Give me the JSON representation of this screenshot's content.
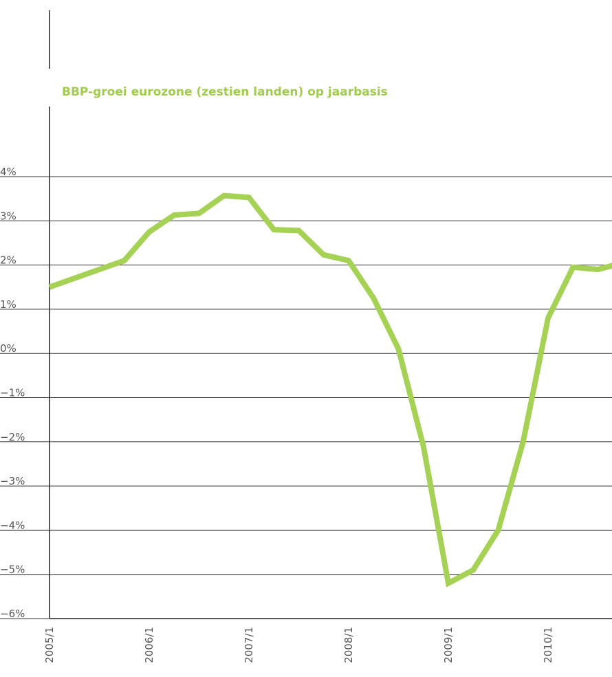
{
  "chart_data": {
    "type": "line",
    "title": "BBP-groei eurozone (zestien landen) op jaarbasis",
    "categories": [
      "2005/1",
      null,
      null,
      null,
      "2006/1",
      null,
      null,
      null,
      "2007/1",
      null,
      null,
      null,
      "2008/1",
      null,
      null,
      null,
      "2009/1",
      null,
      null,
      null,
      "2010/1",
      null,
      null,
      null
    ],
    "series": [
      {
        "name": "BBP-groei",
        "color": "#a5d154",
        "values": [
          1.5,
          1.7,
          1.9,
          2.1,
          2.75,
          3.13,
          3.17,
          3.57,
          3.53,
          2.8,
          2.78,
          2.23,
          2.1,
          1.25,
          0.1,
          -2.1,
          -5.2,
          -4.9,
          -4.0,
          -2.0,
          0.8,
          1.95,
          1.9,
          2.05
        ]
      }
    ],
    "ylim": [
      -6,
      4
    ],
    "yticks": [
      {
        "value": -6,
        "label": "−6%"
      },
      {
        "value": -5,
        "label": "−5%"
      },
      {
        "value": -4,
        "label": "−4%"
      },
      {
        "value": -3,
        "label": "−3%"
      },
      {
        "value": -2,
        "label": "−2%"
      },
      {
        "value": -1,
        "label": "−1%"
      },
      {
        "value": 0,
        "label": "0%"
      },
      {
        "value": 1,
        "label": "1%"
      },
      {
        "value": 2,
        "label": "2%"
      },
      {
        "value": 3,
        "label": "3%"
      },
      {
        "value": 4,
        "label": "4%"
      }
    ],
    "grid": true
  }
}
